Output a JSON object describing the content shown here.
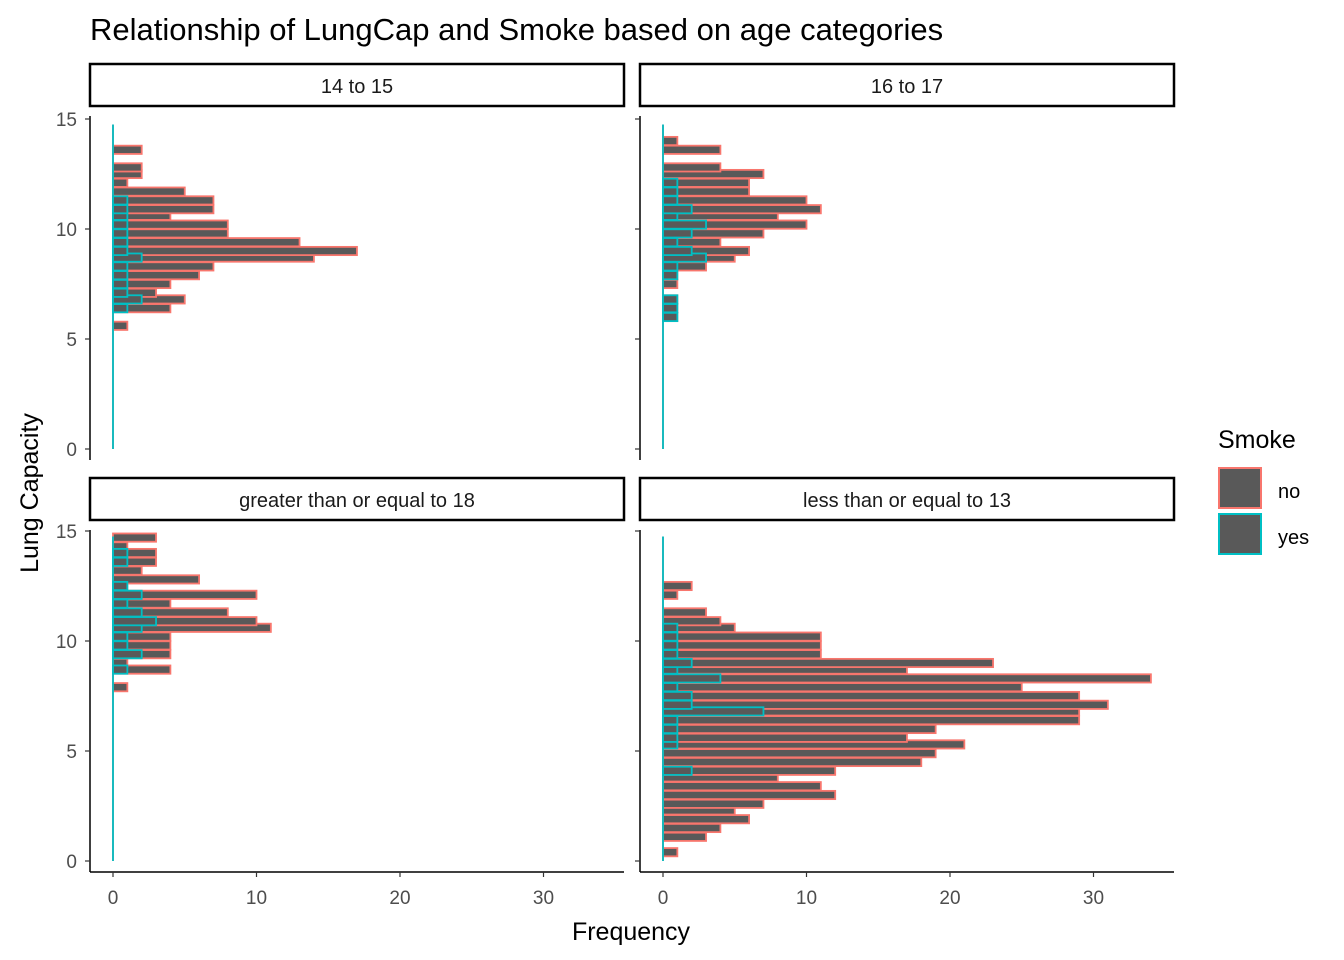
{
  "chart_data": {
    "type": "bar",
    "orientation": "horizontal-histogram",
    "title": "Relationship of LungCap and Smoke based on age categories",
    "xlabel": "Frequency",
    "ylabel": "Lung Capacity",
    "xlim": [
      0,
      35
    ],
    "ylim": [
      0,
      15
    ],
    "x_ticks": [
      0,
      10,
      20,
      30
    ],
    "y_ticks": [
      0,
      5,
      10,
      15
    ],
    "bin_width": 0.375,
    "bar_fill": "#595959",
    "legend": {
      "title": "Smoke",
      "position": "right",
      "items": [
        {
          "label": "no",
          "color": "#F8766D"
        },
        {
          "label": "yes",
          "color": "#00BFC4"
        }
      ]
    },
    "grid": false,
    "panels": [
      {
        "label": "14 to 15",
        "series": [
          {
            "name": "no",
            "bins": [
              [
                5.6,
                1
              ],
              [
                6.4,
                4
              ],
              [
                6.8,
                5
              ],
              [
                7.1,
                3
              ],
              [
                7.5,
                4
              ],
              [
                7.9,
                6
              ],
              [
                8.3,
                7
              ],
              [
                8.7,
                14
              ],
              [
                9.0,
                17
              ],
              [
                9.4,
                13
              ],
              [
                9.8,
                8
              ],
              [
                10.2,
                8
              ],
              [
                10.6,
                4
              ],
              [
                10.9,
                7
              ],
              [
                11.3,
                7
              ],
              [
                11.7,
                5
              ],
              [
                12.1,
                1
              ],
              [
                12.5,
                2
              ],
              [
                12.8,
                2
              ],
              [
                13.6,
                2
              ]
            ]
          },
          {
            "name": "yes",
            "bins": [
              [
                6.4,
                1
              ],
              [
                6.8,
                2
              ],
              [
                7.1,
                1
              ],
              [
                7.5,
                1
              ],
              [
                7.9,
                1
              ],
              [
                8.3,
                1
              ],
              [
                8.7,
                2
              ],
              [
                9.0,
                1
              ],
              [
                9.4,
                1
              ],
              [
                9.8,
                1
              ],
              [
                10.2,
                1
              ],
              [
                10.6,
                1
              ],
              [
                10.9,
                1
              ],
              [
                11.3,
                1
              ]
            ]
          }
        ]
      },
      {
        "label": "16 to 17",
        "series": [
          {
            "name": "no",
            "bins": [
              [
                6.0,
                1
              ],
              [
                6.4,
                1
              ],
              [
                6.8,
                1
              ],
              [
                7.5,
                1
              ],
              [
                7.9,
                1
              ],
              [
                8.3,
                3
              ],
              [
                8.7,
                5
              ],
              [
                9.0,
                6
              ],
              [
                9.4,
                4
              ],
              [
                9.8,
                7
              ],
              [
                10.2,
                10
              ],
              [
                10.6,
                8
              ],
              [
                10.9,
                11
              ],
              [
                11.3,
                10
              ],
              [
                11.7,
                6
              ],
              [
                12.1,
                6
              ],
              [
                12.5,
                7
              ],
              [
                12.8,
                4
              ],
              [
                13.6,
                4
              ],
              [
                14.0,
                1
              ]
            ]
          },
          {
            "name": "yes",
            "bins": [
              [
                6.0,
                1
              ],
              [
                6.4,
                1
              ],
              [
                6.8,
                1
              ],
              [
                7.9,
                1
              ],
              [
                8.3,
                1
              ],
              [
                8.7,
                3
              ],
              [
                9.0,
                2
              ],
              [
                9.4,
                1
              ],
              [
                9.8,
                2
              ],
              [
                10.2,
                3
              ],
              [
                10.6,
                1
              ],
              [
                10.9,
                2
              ],
              [
                11.3,
                1
              ],
              [
                11.7,
                1
              ],
              [
                12.1,
                1
              ]
            ]
          }
        ]
      },
      {
        "label": "greater than or equal to 18",
        "series": [
          {
            "name": "no",
            "bins": [
              [
                7.9,
                1
              ],
              [
                8.7,
                4
              ],
              [
                9.0,
                1
              ],
              [
                9.4,
                4
              ],
              [
                9.8,
                4
              ],
              [
                10.2,
                4
              ],
              [
                10.6,
                11
              ],
              [
                10.9,
                10
              ],
              [
                11.3,
                8
              ],
              [
                11.7,
                4
              ],
              [
                12.1,
                10
              ],
              [
                12.5,
                1
              ],
              [
                12.8,
                6
              ],
              [
                13.2,
                2
              ],
              [
                13.6,
                3
              ],
              [
                14.0,
                3
              ],
              [
                14.3,
                1
              ],
              [
                14.7,
                3
              ]
            ]
          },
          {
            "name": "yes",
            "bins": [
              [
                8.7,
                1
              ],
              [
                9.4,
                2
              ],
              [
                9.8,
                1
              ],
              [
                10.2,
                1
              ],
              [
                10.6,
                2
              ],
              [
                10.9,
                3
              ],
              [
                11.3,
                2
              ],
              [
                11.7,
                1
              ],
              [
                12.1,
                2
              ],
              [
                12.5,
                1
              ],
              [
                13.6,
                1
              ],
              [
                14.0,
                1
              ]
            ]
          }
        ]
      },
      {
        "label": "less than or equal to 13",
        "series": [
          {
            "name": "no",
            "bins": [
              [
                0.4,
                1
              ],
              [
                1.1,
                3
              ],
              [
                1.5,
                4
              ],
              [
                1.9,
                6
              ],
              [
                2.3,
                5
              ],
              [
                2.6,
                7
              ],
              [
                3.0,
                12
              ],
              [
                3.4,
                11
              ],
              [
                3.8,
                8
              ],
              [
                4.1,
                12
              ],
              [
                4.5,
                18
              ],
              [
                4.9,
                19
              ],
              [
                5.3,
                21
              ],
              [
                5.6,
                17
              ],
              [
                6.0,
                19
              ],
              [
                6.4,
                29
              ],
              [
                6.8,
                29
              ],
              [
                7.1,
                31
              ],
              [
                7.5,
                29
              ],
              [
                7.9,
                25
              ],
              [
                8.3,
                34
              ],
              [
                8.7,
                17
              ],
              [
                9.0,
                23
              ],
              [
                9.4,
                11
              ],
              [
                9.8,
                11
              ],
              [
                10.2,
                11
              ],
              [
                10.6,
                5
              ],
              [
                10.9,
                4
              ],
              [
                11.3,
                3
              ],
              [
                12.1,
                1
              ],
              [
                12.5,
                2
              ]
            ]
          },
          {
            "name": "yes",
            "bins": [
              [
                4.1,
                2
              ],
              [
                5.3,
                1
              ],
              [
                5.6,
                1
              ],
              [
                6.0,
                1
              ],
              [
                6.4,
                1
              ],
              [
                6.8,
                7
              ],
              [
                7.1,
                2
              ],
              [
                7.5,
                2
              ],
              [
                7.9,
                1
              ],
              [
                8.3,
                4
              ],
              [
                8.7,
                1
              ],
              [
                9.0,
                2
              ],
              [
                9.4,
                1
              ],
              [
                9.8,
                1
              ],
              [
                10.2,
                1
              ],
              [
                10.6,
                1
              ]
            ]
          }
        ]
      }
    ]
  }
}
